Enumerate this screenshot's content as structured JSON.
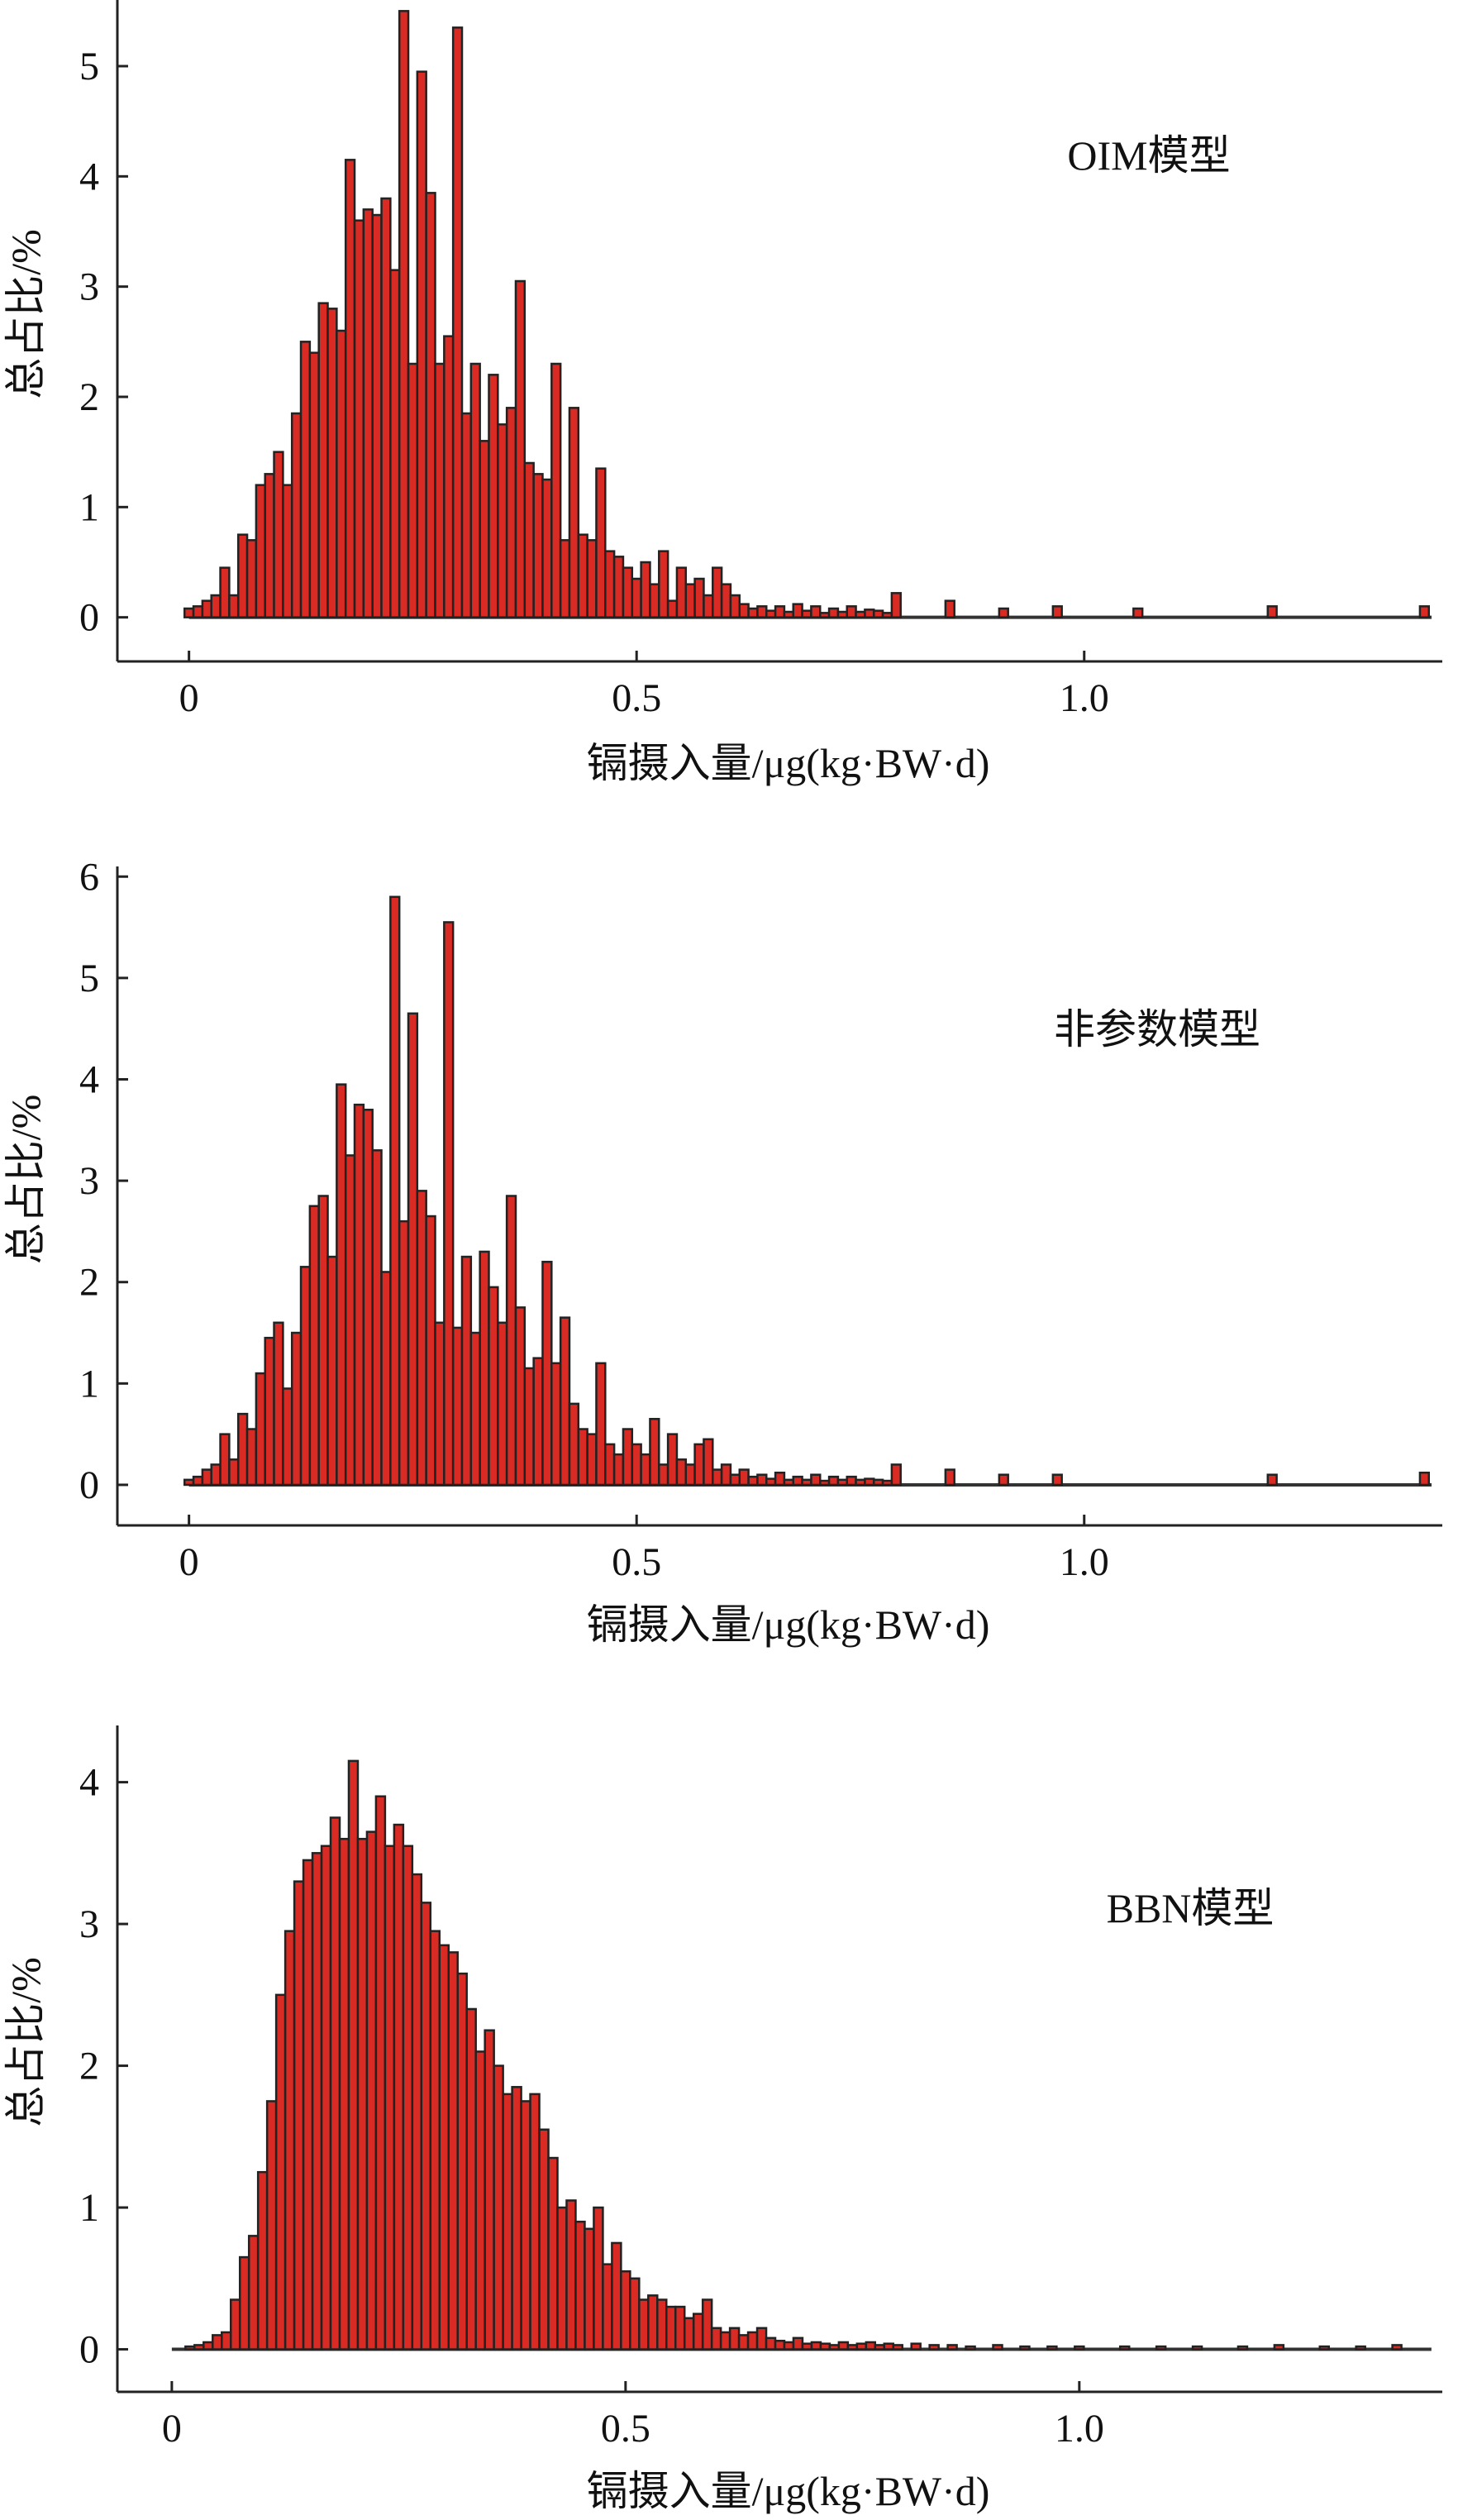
{
  "colors": {
    "bar_fill": "#d92b23",
    "bar_stroke": "#222222",
    "axis": "#222222",
    "background": "#ffffff"
  },
  "chart_data": [
    {
      "type": "bar",
      "subtype": "histogram",
      "annotation": "OIM模型",
      "xlabel": "镉摄入量/μg(kg·BW·d)",
      "ylabel": "总占比/%",
      "xlim": [
        -0.08,
        1.4
      ],
      "ylim": [
        -0.4,
        5.6
      ],
      "xticks": [
        0,
        0.5,
        1.0
      ],
      "xtick_labels": [
        "0",
        "0.5",
        "1.0"
      ],
      "yticks": [
        0,
        1,
        2,
        3,
        4,
        5
      ],
      "ytick_labels": [
        "0",
        "1",
        "2",
        "3",
        "4",
        "5"
      ],
      "grid": false,
      "legend": "none",
      "bin_width": 0.01,
      "bins": [
        [
          0.0,
          0.08
        ],
        [
          0.01,
          0.1
        ],
        [
          0.02,
          0.15
        ],
        [
          0.03,
          0.2
        ],
        [
          0.04,
          0.45
        ],
        [
          0.05,
          0.2
        ],
        [
          0.06,
          0.75
        ],
        [
          0.07,
          0.7
        ],
        [
          0.08,
          1.2
        ],
        [
          0.09,
          1.3
        ],
        [
          0.1,
          1.5
        ],
        [
          0.11,
          1.2
        ],
        [
          0.12,
          1.85
        ],
        [
          0.13,
          2.5
        ],
        [
          0.14,
          2.4
        ],
        [
          0.15,
          2.85
        ],
        [
          0.16,
          2.8
        ],
        [
          0.17,
          2.6
        ],
        [
          0.18,
          4.15
        ],
        [
          0.19,
          3.6
        ],
        [
          0.2,
          3.7
        ],
        [
          0.21,
          3.65
        ],
        [
          0.22,
          3.8
        ],
        [
          0.23,
          3.15
        ],
        [
          0.24,
          5.5
        ],
        [
          0.25,
          2.3
        ],
        [
          0.26,
          4.95
        ],
        [
          0.27,
          3.85
        ],
        [
          0.28,
          2.3
        ],
        [
          0.29,
          2.55
        ],
        [
          0.3,
          5.35
        ],
        [
          0.31,
          1.85
        ],
        [
          0.32,
          2.3
        ],
        [
          0.33,
          1.6
        ],
        [
          0.34,
          2.2
        ],
        [
          0.35,
          1.75
        ],
        [
          0.36,
          1.9
        ],
        [
          0.37,
          3.05
        ],
        [
          0.38,
          1.4
        ],
        [
          0.39,
          1.3
        ],
        [
          0.4,
          1.25
        ],
        [
          0.41,
          2.3
        ],
        [
          0.42,
          0.7
        ],
        [
          0.43,
          1.9
        ],
        [
          0.44,
          0.75
        ],
        [
          0.45,
          0.7
        ],
        [
          0.46,
          1.35
        ],
        [
          0.47,
          0.6
        ],
        [
          0.48,
          0.55
        ],
        [
          0.49,
          0.45
        ],
        [
          0.5,
          0.35
        ],
        [
          0.51,
          0.5
        ],
        [
          0.52,
          0.3
        ],
        [
          0.53,
          0.6
        ],
        [
          0.54,
          0.15
        ],
        [
          0.55,
          0.45
        ],
        [
          0.56,
          0.3
        ],
        [
          0.57,
          0.35
        ],
        [
          0.58,
          0.2
        ],
        [
          0.59,
          0.45
        ],
        [
          0.6,
          0.3
        ],
        [
          0.61,
          0.2
        ],
        [
          0.62,
          0.12
        ],
        [
          0.63,
          0.08
        ],
        [
          0.64,
          0.1
        ],
        [
          0.65,
          0.06
        ],
        [
          0.66,
          0.1
        ],
        [
          0.67,
          0.05
        ],
        [
          0.68,
          0.12
        ],
        [
          0.69,
          0.06
        ],
        [
          0.7,
          0.1
        ],
        [
          0.71,
          0.04
        ],
        [
          0.72,
          0.08
        ],
        [
          0.73,
          0.05
        ],
        [
          0.74,
          0.1
        ],
        [
          0.75,
          0.05
        ],
        [
          0.76,
          0.07
        ],
        [
          0.77,
          0.06
        ],
        [
          0.78,
          0.04
        ],
        [
          0.79,
          0.22
        ],
        [
          0.85,
          0.15
        ],
        [
          0.91,
          0.08
        ],
        [
          0.97,
          0.1
        ],
        [
          1.06,
          0.08
        ],
        [
          1.21,
          0.1
        ],
        [
          1.38,
          0.1
        ]
      ]
    },
    {
      "type": "bar",
      "subtype": "histogram",
      "annotation": "非参数模型",
      "xlabel": "镉摄入量/μg(kg·BW·d)",
      "ylabel": "总占比/%",
      "xlim": [
        -0.08,
        1.4
      ],
      "ylim": [
        -0.4,
        6.1
      ],
      "xticks": [
        0,
        0.5,
        1.0
      ],
      "xtick_labels": [
        "0",
        "0.5",
        "1.0"
      ],
      "yticks": [
        0,
        1,
        2,
        3,
        4,
        5,
        6
      ],
      "ytick_labels": [
        "0",
        "1",
        "2",
        "3",
        "4",
        "5",
        "6"
      ],
      "grid": false,
      "legend": "none",
      "bin_width": 0.01,
      "bins": [
        [
          0.0,
          0.05
        ],
        [
          0.01,
          0.08
        ],
        [
          0.02,
          0.15
        ],
        [
          0.03,
          0.2
        ],
        [
          0.04,
          0.5
        ],
        [
          0.05,
          0.25
        ],
        [
          0.06,
          0.7
        ],
        [
          0.07,
          0.55
        ],
        [
          0.08,
          1.1
        ],
        [
          0.09,
          1.45
        ],
        [
          0.1,
          1.6
        ],
        [
          0.11,
          0.95
        ],
        [
          0.12,
          1.5
        ],
        [
          0.13,
          2.15
        ],
        [
          0.14,
          2.75
        ],
        [
          0.15,
          2.85
        ],
        [
          0.16,
          2.25
        ],
        [
          0.17,
          3.95
        ],
        [
          0.18,
          3.25
        ],
        [
          0.19,
          3.75
        ],
        [
          0.2,
          3.7
        ],
        [
          0.21,
          3.3
        ],
        [
          0.22,
          2.1
        ],
        [
          0.23,
          5.8
        ],
        [
          0.24,
          2.6
        ],
        [
          0.25,
          4.65
        ],
        [
          0.26,
          2.9
        ],
        [
          0.27,
          2.65
        ],
        [
          0.28,
          1.6
        ],
        [
          0.29,
          5.55
        ],
        [
          0.3,
          1.55
        ],
        [
          0.31,
          2.25
        ],
        [
          0.32,
          1.5
        ],
        [
          0.33,
          2.3
        ],
        [
          0.34,
          1.95
        ],
        [
          0.35,
          1.6
        ],
        [
          0.36,
          2.85
        ],
        [
          0.37,
          1.75
        ],
        [
          0.38,
          1.15
        ],
        [
          0.39,
          1.25
        ],
        [
          0.4,
          2.2
        ],
        [
          0.41,
          1.2
        ],
        [
          0.42,
          1.65
        ],
        [
          0.43,
          0.8
        ],
        [
          0.44,
          0.55
        ],
        [
          0.45,
          0.5
        ],
        [
          0.46,
          1.2
        ],
        [
          0.47,
          0.4
        ],
        [
          0.48,
          0.3
        ],
        [
          0.49,
          0.55
        ],
        [
          0.5,
          0.4
        ],
        [
          0.51,
          0.3
        ],
        [
          0.52,
          0.65
        ],
        [
          0.53,
          0.2
        ],
        [
          0.54,
          0.5
        ],
        [
          0.55,
          0.25
        ],
        [
          0.56,
          0.2
        ],
        [
          0.57,
          0.4
        ],
        [
          0.58,
          0.45
        ],
        [
          0.59,
          0.15
        ],
        [
          0.6,
          0.2
        ],
        [
          0.61,
          0.1
        ],
        [
          0.62,
          0.15
        ],
        [
          0.63,
          0.08
        ],
        [
          0.64,
          0.1
        ],
        [
          0.65,
          0.06
        ],
        [
          0.66,
          0.12
        ],
        [
          0.67,
          0.05
        ],
        [
          0.68,
          0.08
        ],
        [
          0.69,
          0.05
        ],
        [
          0.7,
          0.1
        ],
        [
          0.71,
          0.04
        ],
        [
          0.72,
          0.08
        ],
        [
          0.73,
          0.05
        ],
        [
          0.74,
          0.08
        ],
        [
          0.75,
          0.05
        ],
        [
          0.76,
          0.06
        ],
        [
          0.77,
          0.05
        ],
        [
          0.78,
          0.04
        ],
        [
          0.79,
          0.2
        ],
        [
          0.85,
          0.15
        ],
        [
          0.91,
          0.1
        ],
        [
          0.97,
          0.1
        ],
        [
          1.21,
          0.1
        ],
        [
          1.38,
          0.12
        ]
      ]
    },
    {
      "type": "bar",
      "subtype": "histogram",
      "annotation": "BBN模型",
      "xlabel": "镉摄入量/μg(kg·BW·d)",
      "ylabel": "总占比/%",
      "xlim": [
        -0.06,
        1.4
      ],
      "ylim": [
        -0.3,
        4.4
      ],
      "xticks": [
        0,
        0.5,
        1.0
      ],
      "xtick_labels": [
        "0",
        "0.5",
        "1.0"
      ],
      "yticks": [
        0,
        1,
        2,
        3,
        4
      ],
      "ytick_labels": [
        "0",
        "1",
        "2",
        "3",
        "4"
      ],
      "grid": false,
      "legend": "none",
      "bin_width": 0.01,
      "bins": [
        [
          0.02,
          0.02
        ],
        [
          0.03,
          0.03
        ],
        [
          0.04,
          0.05
        ],
        [
          0.05,
          0.1
        ],
        [
          0.06,
          0.12
        ],
        [
          0.07,
          0.35
        ],
        [
          0.08,
          0.65
        ],
        [
          0.09,
          0.8
        ],
        [
          0.1,
          1.25
        ],
        [
          0.11,
          1.75
        ],
        [
          0.12,
          2.5
        ],
        [
          0.13,
          2.95
        ],
        [
          0.14,
          3.3
        ],
        [
          0.15,
          3.45
        ],
        [
          0.16,
          3.5
        ],
        [
          0.17,
          3.55
        ],
        [
          0.18,
          3.75
        ],
        [
          0.19,
          3.6
        ],
        [
          0.2,
          4.15
        ],
        [
          0.21,
          3.6
        ],
        [
          0.22,
          3.65
        ],
        [
          0.23,
          3.9
        ],
        [
          0.24,
          3.55
        ],
        [
          0.25,
          3.7
        ],
        [
          0.26,
          3.55
        ],
        [
          0.27,
          3.35
        ],
        [
          0.28,
          3.15
        ],
        [
          0.29,
          2.95
        ],
        [
          0.3,
          2.85
        ],
        [
          0.31,
          2.8
        ],
        [
          0.32,
          2.65
        ],
        [
          0.33,
          2.4
        ],
        [
          0.34,
          2.1
        ],
        [
          0.35,
          2.25
        ],
        [
          0.36,
          2.0
        ],
        [
          0.37,
          1.8
        ],
        [
          0.38,
          1.85
        ],
        [
          0.39,
          1.75
        ],
        [
          0.4,
          1.8
        ],
        [
          0.41,
          1.55
        ],
        [
          0.42,
          1.35
        ],
        [
          0.43,
          1.0
        ],
        [
          0.44,
          1.05
        ],
        [
          0.45,
          0.9
        ],
        [
          0.46,
          0.85
        ],
        [
          0.47,
          1.0
        ],
        [
          0.48,
          0.6
        ],
        [
          0.49,
          0.75
        ],
        [
          0.5,
          0.55
        ],
        [
          0.51,
          0.5
        ],
        [
          0.52,
          0.35
        ],
        [
          0.53,
          0.38
        ],
        [
          0.54,
          0.35
        ],
        [
          0.55,
          0.3
        ],
        [
          0.56,
          0.3
        ],
        [
          0.57,
          0.22
        ],
        [
          0.58,
          0.25
        ],
        [
          0.59,
          0.35
        ],
        [
          0.6,
          0.15
        ],
        [
          0.61,
          0.12
        ],
        [
          0.62,
          0.15
        ],
        [
          0.63,
          0.1
        ],
        [
          0.64,
          0.12
        ],
        [
          0.65,
          0.15
        ],
        [
          0.66,
          0.08
        ],
        [
          0.67,
          0.06
        ],
        [
          0.68,
          0.05
        ],
        [
          0.69,
          0.08
        ],
        [
          0.7,
          0.04
        ],
        [
          0.71,
          0.05
        ],
        [
          0.72,
          0.04
        ],
        [
          0.73,
          0.03
        ],
        [
          0.74,
          0.05
        ],
        [
          0.75,
          0.03
        ],
        [
          0.76,
          0.04
        ],
        [
          0.77,
          0.05
        ],
        [
          0.78,
          0.03
        ],
        [
          0.79,
          0.04
        ],
        [
          0.8,
          0.03
        ],
        [
          0.82,
          0.04
        ],
        [
          0.84,
          0.03
        ],
        [
          0.86,
          0.03
        ],
        [
          0.88,
          0.02
        ],
        [
          0.91,
          0.03
        ],
        [
          0.94,
          0.02
        ],
        [
          0.97,
          0.02
        ],
        [
          1.0,
          0.02
        ],
        [
          1.05,
          0.02
        ],
        [
          1.09,
          0.02
        ],
        [
          1.13,
          0.02
        ],
        [
          1.18,
          0.02
        ],
        [
          1.22,
          0.03
        ],
        [
          1.27,
          0.02
        ],
        [
          1.31,
          0.02
        ],
        [
          1.35,
          0.03
        ]
      ]
    }
  ]
}
